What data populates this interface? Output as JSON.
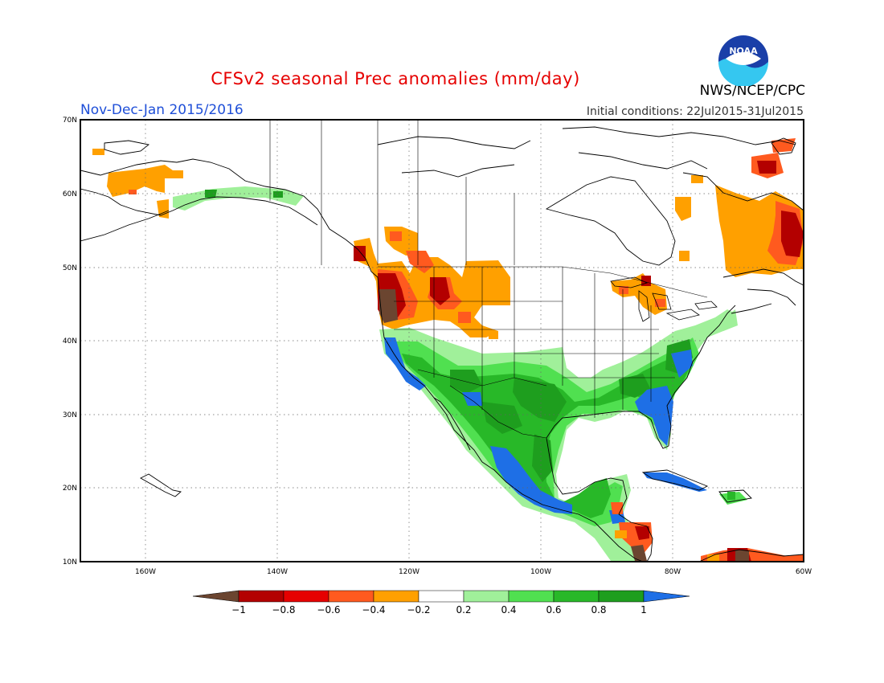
{
  "header": {
    "title": "CFSv2 seasonal Prec anomalies (mm/day)",
    "period": "Nov-Dec-Jan 2015/2016",
    "initial_conditions": "Initial conditions: 22Jul2015-31Jul2015",
    "agency": "NWS/NCEP/CPC",
    "logo_text": "NOAA"
  },
  "map": {
    "region": "North America",
    "lon_range": [
      -170,
      -60
    ],
    "lat_range": [
      10,
      70
    ],
    "grid": true,
    "lat_labels": [
      "70N",
      "60N",
      "50N",
      "40N",
      "30N",
      "20N",
      "10N"
    ],
    "lon_labels": [
      "160W",
      "140W",
      "120W",
      "100W",
      "80W",
      "60W"
    ]
  },
  "colorbar": {
    "labels": [
      "−1",
      "−0.8",
      "−0.6",
      "−0.4",
      "−0.2",
      "0.2",
      "0.4",
      "0.6",
      "0.8",
      "1"
    ],
    "colors": [
      "#6b4530",
      "#b30000",
      "#e60000",
      "#ff5a1f",
      "#ffa000",
      "#ffffff",
      "#a0f09a",
      "#50e050",
      "#28b828",
      "#1e9e1e",
      "#1e6fe6"
    ]
  }
}
